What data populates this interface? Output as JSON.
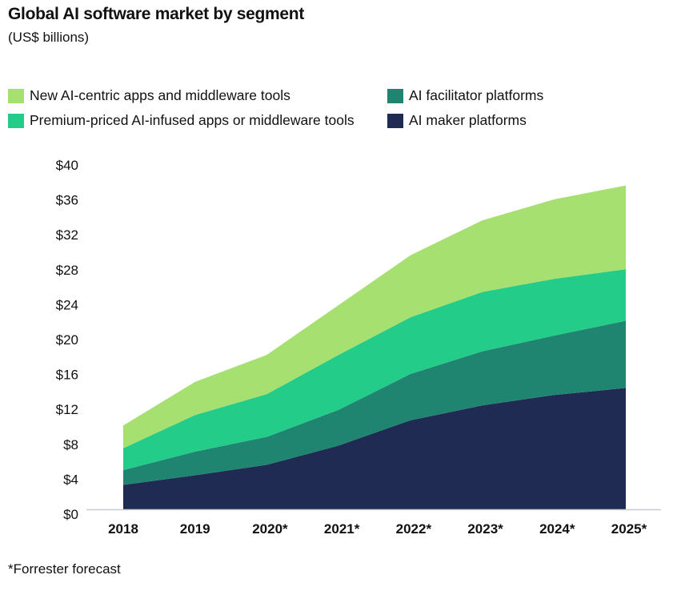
{
  "chart_data": {
    "type": "area",
    "stacked": true,
    "title": "Global AI software market by segment",
    "subtitle": "(US$ billions)",
    "categories": [
      "2018",
      "2019",
      "2020*",
      "2021*",
      "2022*",
      "2023*",
      "2024*",
      "2025*"
    ],
    "ylim": [
      0,
      40
    ],
    "yticks": [
      "$0",
      "$4",
      "$8",
      "$12",
      "$16",
      "$20",
      "$24",
      "$28",
      "$32",
      "$36",
      "$40"
    ],
    "grid": false,
    "legend_placement": "top",
    "series": [
      {
        "name": "AI maker platforms",
        "color": "#1f2b52",
        "values": [
          2.8,
          3.9,
          5.1,
          7.3,
          10.2,
          11.9,
          13.1,
          13.9
        ]
      },
      {
        "name": "AI facilitator platforms",
        "color": "#1f8570",
        "values": [
          1.7,
          2.7,
          3.2,
          4.1,
          5.3,
          6.2,
          6.8,
          7.7
        ]
      },
      {
        "name": "Premium-priced AI-infused apps or middleware tools",
        "color": "#23cc88",
        "values": [
          2.5,
          4.2,
          4.9,
          6.3,
          6.5,
          6.8,
          6.5,
          5.9
        ]
      },
      {
        "name": "New AI-centric apps and middleware tools",
        "color": "#a6e070",
        "values": [
          2.6,
          3.8,
          4.5,
          5.7,
          7.1,
          8.2,
          9.1,
          9.6
        ]
      }
    ],
    "footnote": "*Forrester forecast"
  }
}
